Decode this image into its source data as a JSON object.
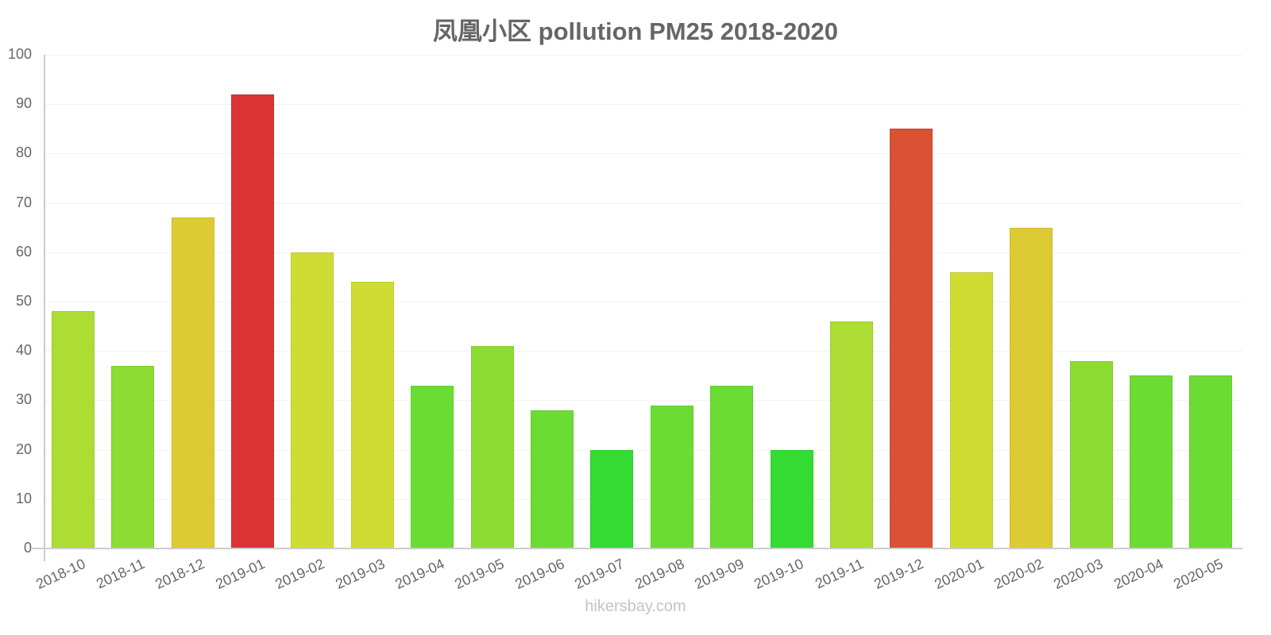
{
  "title": "凤凰小区 pollution PM25 2018-2020",
  "footer": "hikersbay.com",
  "y_ticks": [
    "0",
    "10",
    "20",
    "30",
    "40",
    "50",
    "60",
    "70",
    "80",
    "90",
    "100"
  ],
  "chart_data": {
    "type": "bar",
    "title": "凤凰小区 pollution PM25 2018-2020",
    "xlabel": "",
    "ylabel": "",
    "ylim": [
      0,
      100
    ],
    "grid": true,
    "legend": "none",
    "categories": [
      "2018-10",
      "2018-11",
      "2018-12",
      "2019-01",
      "2019-02",
      "2019-03",
      "2019-04",
      "2019-05",
      "2019-06",
      "2019-07",
      "2019-08",
      "2019-09",
      "2019-10",
      "2019-11",
      "2019-12",
      "2020-01",
      "2020-02",
      "2020-03",
      "2020-04",
      "2020-05"
    ],
    "values": [
      48,
      37,
      67,
      92,
      60,
      54,
      33,
      41,
      28,
      20,
      29,
      33,
      20,
      46,
      85,
      56,
      65,
      38,
      35,
      35
    ],
    "colors": [
      "#addc34",
      "#8cdc34",
      "#dccb34",
      "#dc3434",
      "#cfdc34",
      "#cfdc34",
      "#6bdc34",
      "#8cdc34",
      "#6bdc34",
      "#34dc34",
      "#6bdc34",
      "#6bdc34",
      "#34dc34",
      "#addc34",
      "#dc5034",
      "#cfdc34",
      "#dccb34",
      "#8cdc34",
      "#6bdc34",
      "#6bdc34"
    ]
  }
}
